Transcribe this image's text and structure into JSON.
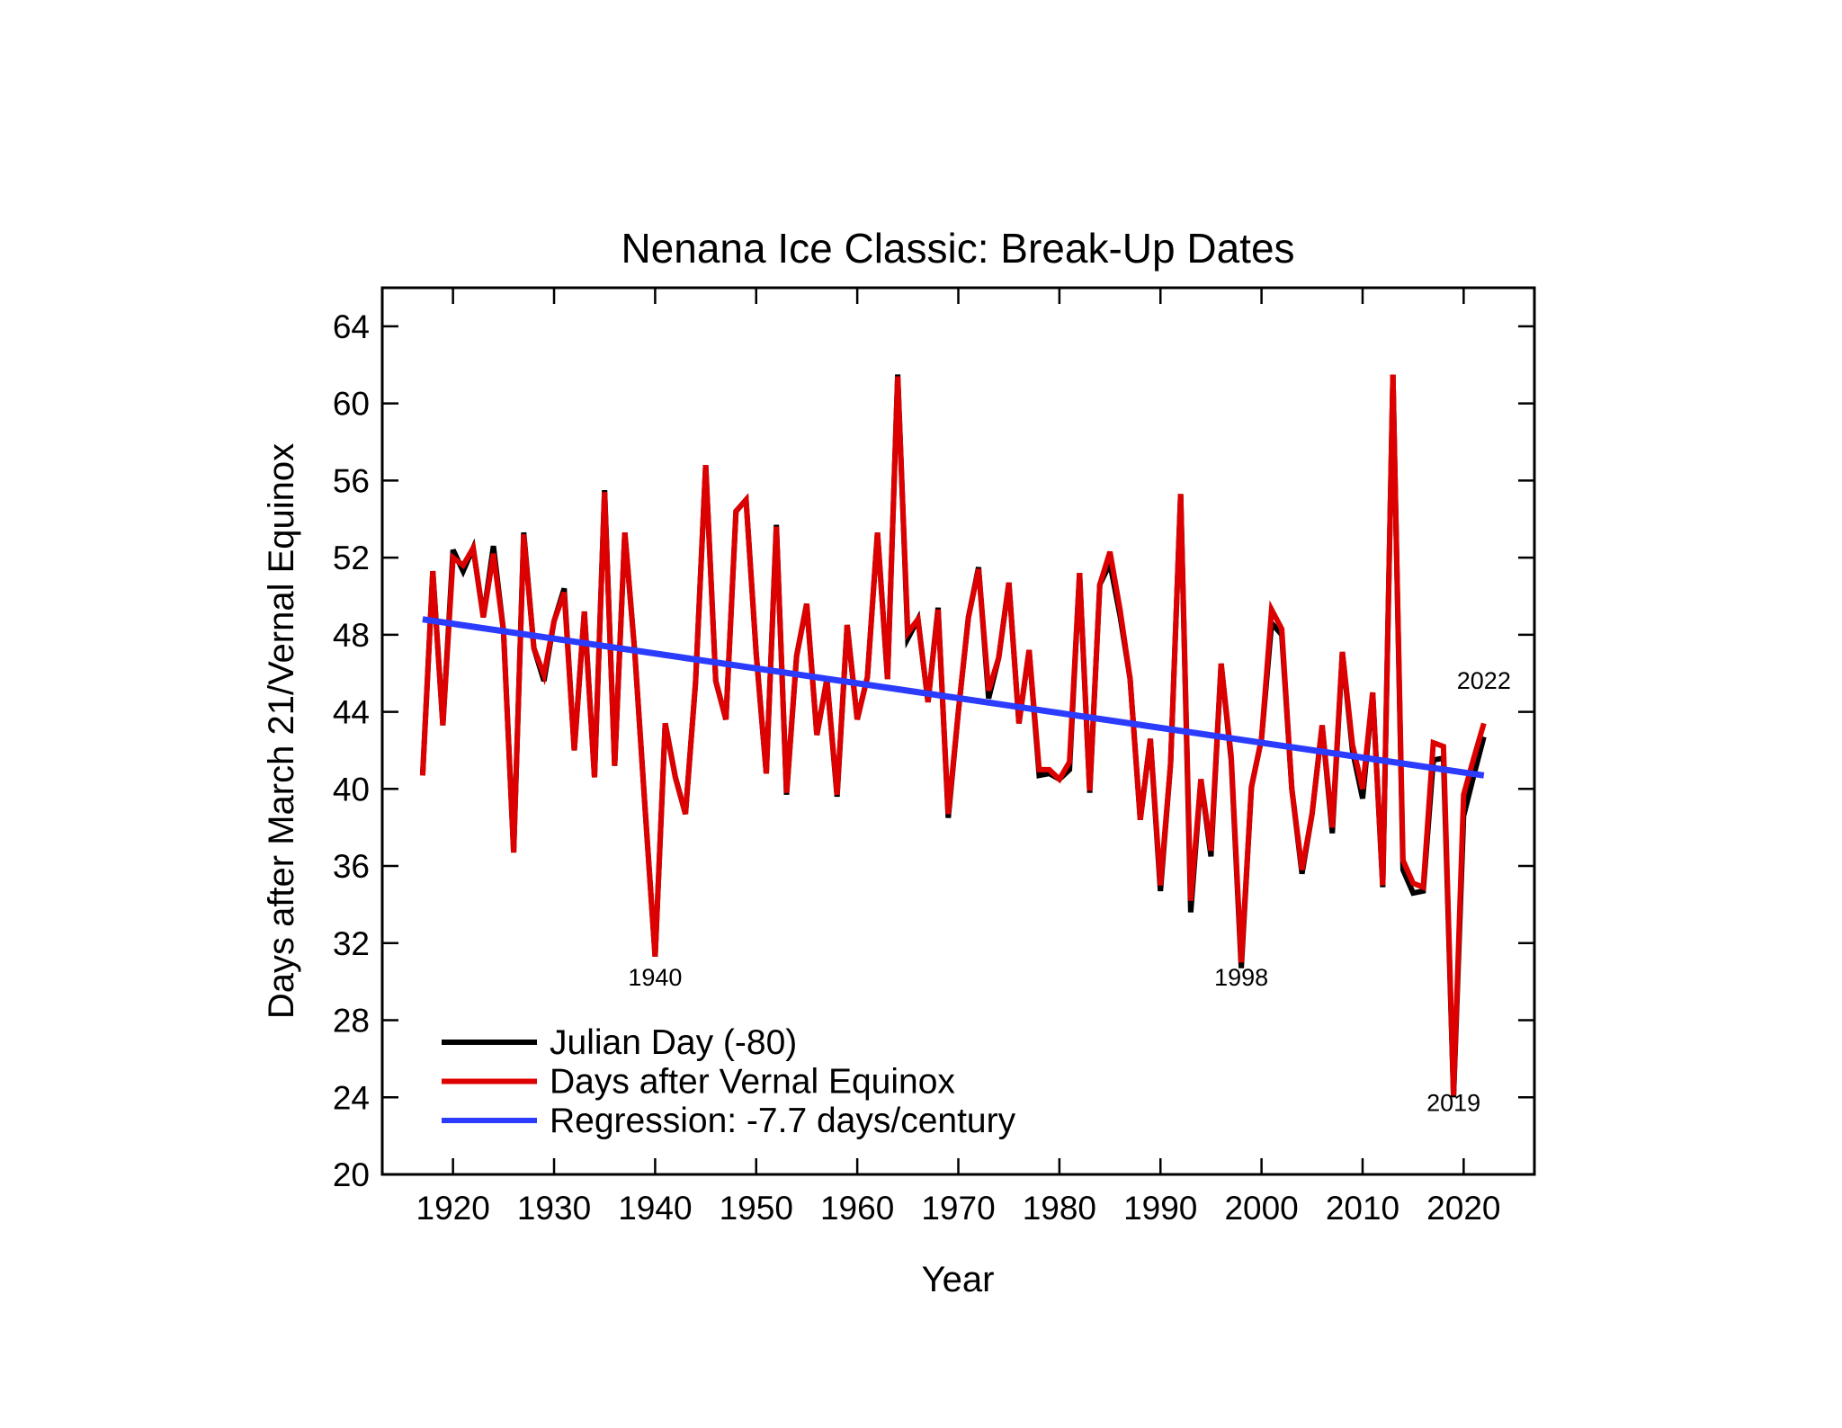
{
  "chart_data": {
    "type": "line",
    "title": "Nenana Ice Classic: Break-Up Dates",
    "xlabel": "Year",
    "ylabel": "Days after March 21/Vernal Equinox",
    "xlim": [
      1913,
      2027
    ],
    "ylim": [
      20,
      66
    ],
    "xticks": [
      1920,
      1930,
      1940,
      1950,
      1960,
      1970,
      1980,
      1990,
      2000,
      2010,
      2020
    ],
    "yticks": [
      20,
      24,
      28,
      32,
      36,
      40,
      44,
      48,
      52,
      56,
      60,
      64
    ],
    "grid": false,
    "legend_position": "bottom-left",
    "x_start": 1917,
    "series": [
      {
        "name": "Julian Day (-80)",
        "color": "#000000",
        "values": [
          40.7,
          51.3,
          43.3,
          52.4,
          51.3,
          52.5,
          48.9,
          52.6,
          48.2,
          36.7,
          53.3,
          47.3,
          45.6,
          48.7,
          50.4,
          42.0,
          49.2,
          40.6,
          55.5,
          41.2,
          53.3,
          47.0,
          39.0,
          31.3,
          43.4,
          40.6,
          38.7,
          45.5,
          56.8,
          45.6,
          43.6,
          54.4,
          55.0,
          47.0,
          40.8,
          53.7,
          39.7,
          46.9,
          49.6,
          42.8,
          45.7,
          39.6,
          48.5,
          43.6,
          45.8,
          53.3,
          45.7,
          61.5,
          47.8,
          48.8,
          44.5,
          49.4,
          38.5,
          44.0,
          48.9,
          51.5,
          44.7,
          46.8,
          50.7,
          43.4,
          47.2,
          40.7,
          40.8,
          40.5,
          41.0,
          51.2,
          39.8,
          50.6,
          51.7,
          49.0,
          45.7,
          38.4,
          42.6,
          34.7,
          41.3,
          55.3,
          33.6,
          40.5,
          36.5,
          46.5,
          41.5,
          30.7,
          40.1,
          42.6,
          48.6,
          48.0,
          40.0,
          35.6,
          38.7,
          43.3,
          37.7,
          47.1,
          42.0,
          39.5,
          45.0,
          34.9,
          61.5,
          35.8,
          34.6,
          34.7,
          41.5,
          41.6,
          24.0,
          38.6,
          40.7,
          42.7
        ]
      },
      {
        "name": "Days after Vernal Equinox",
        "color": "#dd0000",
        "values": [
          40.7,
          51.3,
          43.3,
          52.0,
          51.6,
          52.5,
          48.9,
          52.2,
          48.2,
          36.7,
          53.2,
          47.3,
          45.9,
          48.7,
          50.2,
          42.0,
          49.2,
          40.6,
          55.4,
          41.2,
          53.3,
          47.0,
          39.0,
          31.3,
          43.4,
          40.6,
          38.7,
          45.5,
          56.8,
          45.6,
          43.6,
          54.4,
          55.0,
          47.0,
          40.8,
          53.6,
          39.8,
          46.9,
          49.6,
          42.8,
          45.7,
          39.7,
          48.5,
          43.6,
          45.8,
          53.3,
          45.7,
          61.4,
          48.1,
          48.8,
          44.5,
          49.3,
          38.7,
          44.0,
          48.9,
          51.4,
          45.1,
          46.8,
          50.7,
          43.4,
          47.2,
          41.0,
          41.0,
          40.5,
          41.4,
          51.2,
          39.9,
          50.6,
          52.3,
          49.3,
          45.7,
          38.4,
          42.6,
          35.0,
          41.3,
          55.3,
          34.2,
          40.5,
          36.8,
          46.5,
          41.7,
          31.0,
          40.1,
          42.6,
          49.3,
          48.3,
          40.0,
          35.8,
          38.7,
          43.3,
          38.0,
          47.1,
          42.3,
          40.0,
          45.0,
          35.0,
          61.5,
          36.3,
          35.1,
          34.9,
          42.4,
          42.2,
          24.1,
          39.7,
          41.6,
          43.4
        ]
      },
      {
        "name": "Regression: -7.7 days/century",
        "color": "#2b3cff",
        "x": [
          1917,
          2022
        ],
        "values": [
          48.8,
          40.7
        ]
      }
    ],
    "annotations": [
      {
        "text": "1940",
        "x": 1940,
        "y": 29.8
      },
      {
        "text": "1998",
        "x": 1998,
        "y": 29.8
      },
      {
        "text": "2022",
        "x": 2022,
        "y": 45.2
      },
      {
        "text": "2019",
        "x": 2019,
        "y": 23.3
      }
    ]
  }
}
